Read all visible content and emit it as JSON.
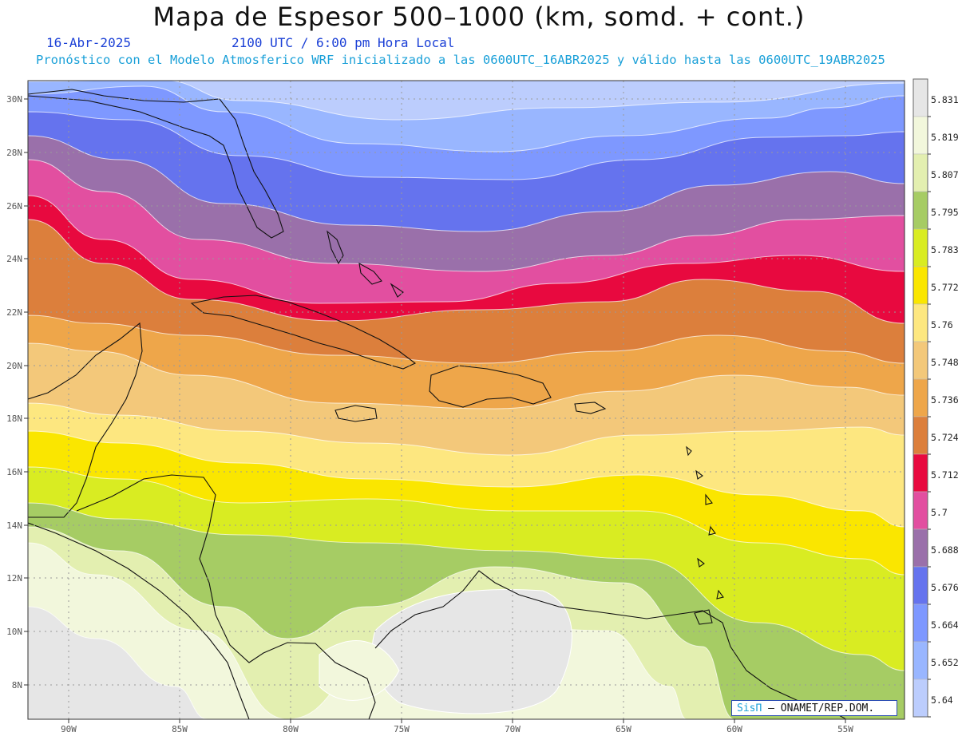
{
  "title": "Mapa de Espesor 500–1000 (km, somd. + cont.)",
  "date": "16-Abr-2025",
  "time": "2100 UTC / 6:00 pm Hora Local",
  "forecast": "Pronóstico con el Modelo Atmosferico WRF inicializado a las 0600UTC_16ABR2025 y válido hasta las  0600UTC_19ABR2025",
  "credit": {
    "sis": "SisΠ",
    "dash": " – ",
    "org": "ONAMET/REP.DOM."
  },
  "lat_ticks": [
    "30N",
    "28N",
    "26N",
    "24N",
    "22N",
    "20N",
    "18N",
    "16N",
    "14N",
    "12N",
    "10N",
    "8N"
  ],
  "lon_ticks": [
    "90W",
    "85W",
    "80W",
    "75W",
    "70W",
    "65W",
    "60W",
    "55W"
  ],
  "colorbar": {
    "labels": [
      "5.831",
      "5.819",
      "5.807",
      "5.795",
      "5.783",
      "5.772",
      "5.76",
      "5.748",
      "5.736",
      "5.724",
      "5.712",
      "5.7",
      "5.688",
      "5.676",
      "5.664",
      "5.652",
      "5.64"
    ],
    "colors": [
      "#e6e6e6",
      "#f2f7dc",
      "#e3efb0",
      "#a6cc64",
      "#d9ec22",
      "#fae600",
      "#fde780",
      "#f3c87a",
      "#eea64a",
      "#dc7f3c",
      "#e8093f",
      "#e24fa0",
      "#9a70aa",
      "#6573ee",
      "#7e98ff",
      "#99b6ff",
      "#bccdfd"
    ]
  },
  "map": {
    "region": "Caribe, Centroamérica y Golfo de México",
    "bands": [
      {
        "level": "5.64",
        "color": "#bccdfd"
      },
      {
        "level": "5.652",
        "color": "#99b6ff"
      },
      {
        "level": "5.664",
        "color": "#7e98ff"
      },
      {
        "level": "5.676",
        "color": "#6573ee"
      },
      {
        "level": "5.688",
        "color": "#9a70aa"
      },
      {
        "level": "5.7",
        "color": "#e24fa0"
      },
      {
        "level": "5.712",
        "color": "#e8093f"
      },
      {
        "level": "5.724",
        "color": "#dc7f3c"
      },
      {
        "level": "5.736",
        "color": "#eea64a"
      },
      {
        "level": "5.748",
        "color": "#f3c87a"
      },
      {
        "level": "5.76",
        "color": "#fde780"
      },
      {
        "level": "5.772",
        "color": "#fae600"
      },
      {
        "level": "5.783",
        "color": "#d9ec22"
      },
      {
        "level": "5.795",
        "color": "#a6cc64"
      },
      {
        "level": "5.807",
        "color": "#e3efb0"
      },
      {
        "level": "5.819",
        "color": "#f2f7dc"
      },
      {
        "level": "5.831",
        "color": "#e6e6e6"
      }
    ]
  }
}
